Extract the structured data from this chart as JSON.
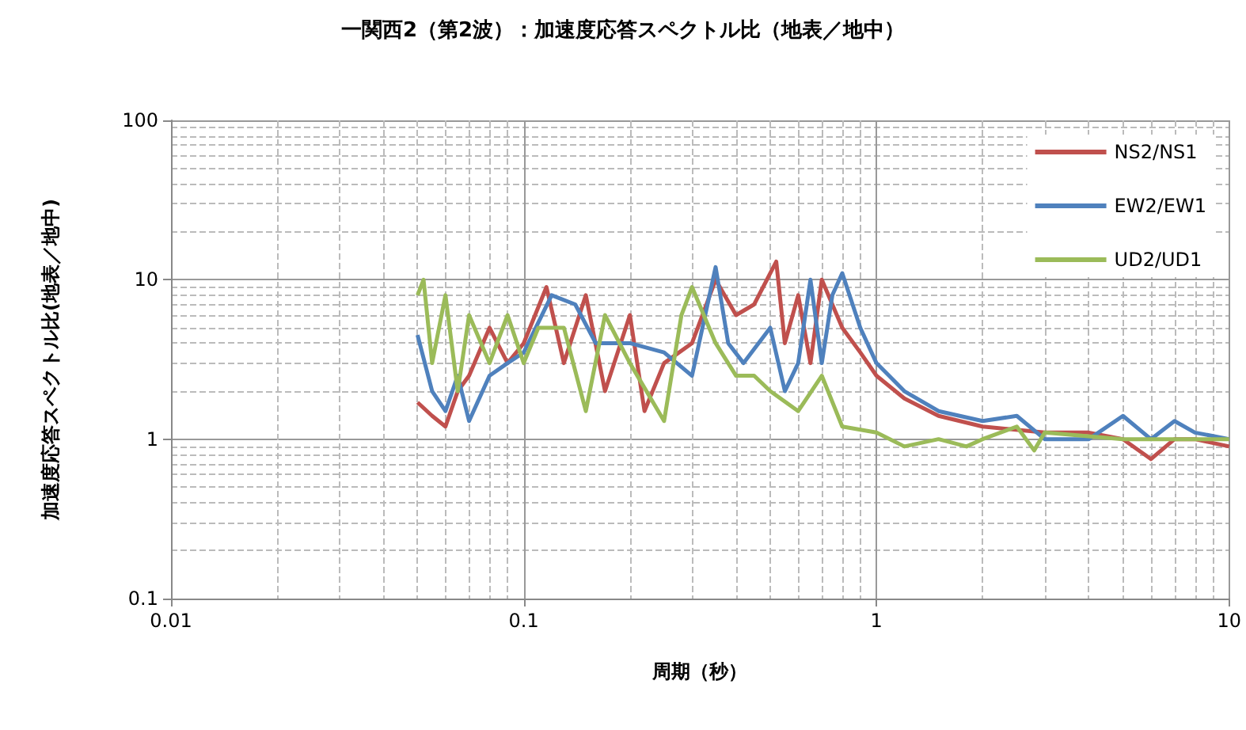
{
  "chart_data": {
    "type": "line",
    "title": "一関西2（第2波）：加速度応答スペクトル比（地表／地中）",
    "xlabel": "周期（秒）",
    "ylabel": "加速度応答スペクトル比(地表／地中)",
    "log": "xy",
    "grid": true,
    "legend": "top right",
    "marker": "none",
    "line_style": "solid",
    "xlim": [
      0.01,
      10
    ],
    "xticks": [
      0.01,
      0.1,
      1,
      10
    ],
    "ylim": [
      0.1,
      100
    ],
    "yticks": [
      0.1,
      1,
      10,
      100
    ],
    "series": [
      {
        "name": "NS2/NS1",
        "color": "#c0504d",
        "x": [
          0.05,
          0.055,
          0.06,
          0.065,
          0.07,
          0.08,
          0.09,
          0.1,
          0.116,
          0.13,
          0.15,
          0.17,
          0.2,
          0.22,
          0.25,
          0.3,
          0.35,
          0.4,
          0.45,
          0.52,
          0.55,
          0.6,
          0.65,
          0.7,
          0.8,
          0.9,
          1,
          1.2,
          1.5,
          2,
          3,
          4,
          5,
          6,
          7,
          8,
          10
        ],
        "values": [
          1.7,
          1.4,
          1.2,
          2,
          2.5,
          5,
          3,
          4,
          9,
          3,
          8,
          2,
          6,
          1.5,
          3,
          4,
          10,
          6,
          7,
          13,
          4,
          8,
          3,
          10,
          5,
          3.5,
          2.5,
          1.8,
          1.4,
          1.2,
          1.1,
          1.1,
          1,
          0.75,
          1,
          1,
          0.9
        ]
      },
      {
        "name": "EW2/EW1",
        "color": "#4f81bd",
        "x": [
          0.05,
          0.055,
          0.06,
          0.065,
          0.07,
          0.08,
          0.09,
          0.1,
          0.12,
          0.14,
          0.16,
          0.2,
          0.25,
          0.3,
          0.35,
          0.38,
          0.42,
          0.5,
          0.55,
          0.6,
          0.65,
          0.7,
          0.75,
          0.8,
          0.9,
          1,
          1.2,
          1.5,
          2,
          2.5,
          3,
          4,
          5,
          6,
          7,
          8,
          10
        ],
        "values": [
          4.5,
          2,
          1.5,
          2.5,
          1.3,
          2.5,
          3,
          3.5,
          8,
          7,
          4,
          4,
          3.5,
          2.5,
          12,
          4,
          3,
          5,
          2,
          3,
          10,
          3,
          8,
          11,
          5,
          3,
          2,
          1.5,
          1.3,
          1.4,
          1,
          1,
          1.4,
          1,
          1.3,
          1.1,
          1
        ]
      },
      {
        "name": "UD2/UD1",
        "color": "#9bbb59",
        "x": [
          0.05,
          0.052,
          0.055,
          0.06,
          0.065,
          0.07,
          0.08,
          0.09,
          0.1,
          0.11,
          0.13,
          0.15,
          0.17,
          0.2,
          0.25,
          0.28,
          0.3,
          0.35,
          0.4,
          0.45,
          0.5,
          0.6,
          0.7,
          0.8,
          1,
          1.2,
          1.5,
          1.8,
          2,
          2.5,
          2.8,
          3,
          5,
          10
        ],
        "values": [
          8,
          10,
          3,
          8,
          2,
          6,
          3,
          6,
          3,
          5,
          5,
          1.5,
          6,
          3,
          1.3,
          6,
          9,
          4,
          2.5,
          2.5,
          2,
          1.5,
          2.5,
          1.2,
          1.1,
          0.9,
          1,
          0.9,
          1,
          1.2,
          0.85,
          1.1,
          1,
          1
        ]
      }
    ]
  }
}
